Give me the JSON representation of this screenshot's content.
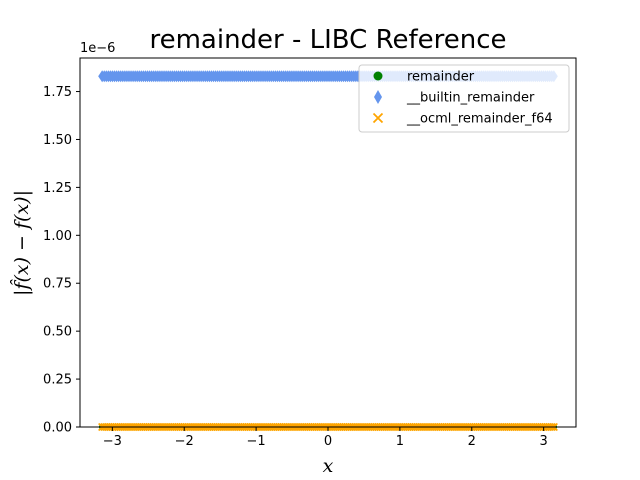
{
  "chart_data": {
    "type": "scatter",
    "title": "remainder - LIBC Reference",
    "xlabel": "x",
    "ylabel": "|f̂(x) − f(x)|",
    "y_offset_label": "1e−6",
    "xlim": [
      -3.45,
      3.45
    ],
    "ylim": [
      0,
      1.925e-06
    ],
    "x_ticks": [
      -3,
      -2,
      -1,
      0,
      1,
      2,
      3
    ],
    "x_tick_labels": [
      "−3",
      "−2",
      "−1",
      "0",
      "1",
      "2",
      "3"
    ],
    "y_ticks": [
      0,
      2.5e-07,
      5e-07,
      7.5e-07,
      1e-06,
      1.25e-06,
      1.5e-06,
      1.75e-06
    ],
    "y_tick_labels": [
      "0.00",
      "0.25",
      "0.50",
      "0.75",
      "1.00",
      "1.25",
      "1.50",
      "1.75"
    ],
    "grid": false,
    "legend_position": "top-right",
    "x_range": [
      -3.1416,
      3.1416
    ],
    "series": [
      {
        "name": "remainder",
        "marker": "circle",
        "color": "#008000",
        "y_value": 0
      },
      {
        "name": "__builtin_remainder",
        "marker": "thin-diamond",
        "color": "#6495ed",
        "y_value": 1.83e-06
      },
      {
        "name": "__ocml_remainder_f64",
        "marker": "x",
        "color": "#ffa500",
        "y_value": 0
      }
    ]
  }
}
